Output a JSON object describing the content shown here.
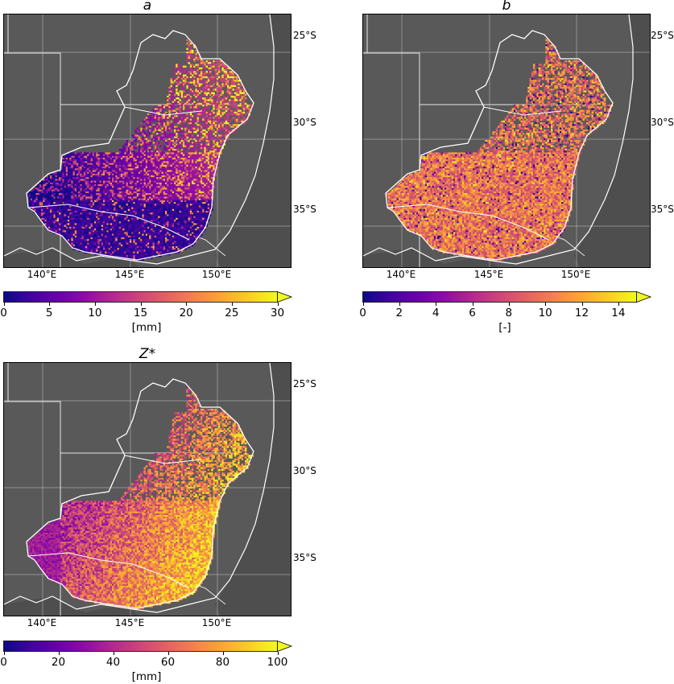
{
  "panels": [
    {
      "id": "a",
      "title": "a",
      "lat_labels": [
        "25°S",
        "30°S",
        "35°S"
      ],
      "lon_labels": [
        "140°E",
        "145°E",
        "150°E"
      ],
      "colorbar": {
        "ticks": [
          "0",
          "5",
          "10",
          "15",
          "20",
          "25",
          "30"
        ],
        "min": 0,
        "max": 30,
        "unit": "[mm]",
        "extend": "max"
      },
      "palette": "plasma",
      "pattern": "low-southwest-high-northeast"
    },
    {
      "id": "b",
      "title": "b",
      "lat_labels": [
        "25°S",
        "30°S",
        "35°S"
      ],
      "lon_labels": [
        "140°E",
        "145°E",
        "150°E"
      ],
      "colorbar": {
        "ticks": [
          "0",
          "2",
          "4",
          "6",
          "8",
          "10",
          "12",
          "14"
        ],
        "min": 0,
        "max": 15,
        "unit": "[-]",
        "extend": "max"
      },
      "palette": "plasma",
      "pattern": "mostly-mid-high"
    },
    {
      "id": "zstar",
      "title": "Z*",
      "lat_labels": [
        "25°S",
        "30°S",
        "35°S"
      ],
      "lon_labels": [
        "140°E",
        "145°E",
        "150°E"
      ],
      "colorbar": {
        "ticks": [
          "0",
          "20",
          "40",
          "60",
          "80",
          "100"
        ],
        "min": 0,
        "max": 100,
        "unit": "[mm]",
        "extend": "max"
      },
      "palette": "plasma",
      "pattern": "high-southeast-low-west"
    }
  ],
  "colors": {
    "land": "#595959",
    "boundary": "#ffffff",
    "grid": "#bdbdbd"
  }
}
